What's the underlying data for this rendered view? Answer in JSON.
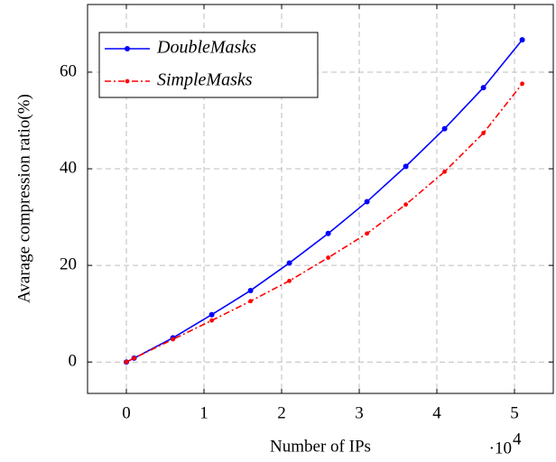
{
  "chart_data": {
    "type": "line",
    "x_label": "Number of IPs",
    "y_label": "Avarage compression ratio(%)",
    "x_scale_label": {
      "base": "·10",
      "exponent": "4"
    },
    "x": [
      0,
      1000,
      6000,
      11000,
      16000,
      21000,
      26000,
      31000,
      36000,
      41000,
      46000,
      51000
    ],
    "series": [
      {
        "name": "DoubleMasks",
        "color": "#0000ff",
        "style": "solid",
        "values": [
          0,
          0.8,
          5,
          9.8,
          14.8,
          20.5,
          26.6,
          33.2,
          40.5,
          48.3,
          56.8,
          66.7
        ]
      },
      {
        "name": "SimpleMasks",
        "color": "#ff0000",
        "style": "dashdot",
        "values": [
          0,
          0.8,
          4.7,
          8.6,
          12.6,
          16.8,
          21.6,
          26.6,
          32.6,
          39.4,
          47.4,
          57.6
        ]
      }
    ],
    "xlim": [
      -5000,
      55000
    ],
    "xticks": [
      0,
      {
        "value": 10000,
        "label": "1"
      },
      {
        "value": 20000,
        "label": "2"
      },
      {
        "value": 30000,
        "label": "3"
      },
      {
        "value": 40000,
        "label": "4"
      },
      {
        "value": 50000,
        "label": "5"
      }
    ],
    "ylim": [
      -6.5,
      74
    ],
    "yticks": [
      0,
      20,
      40,
      60
    ],
    "grid": true,
    "legend": "upper left"
  }
}
